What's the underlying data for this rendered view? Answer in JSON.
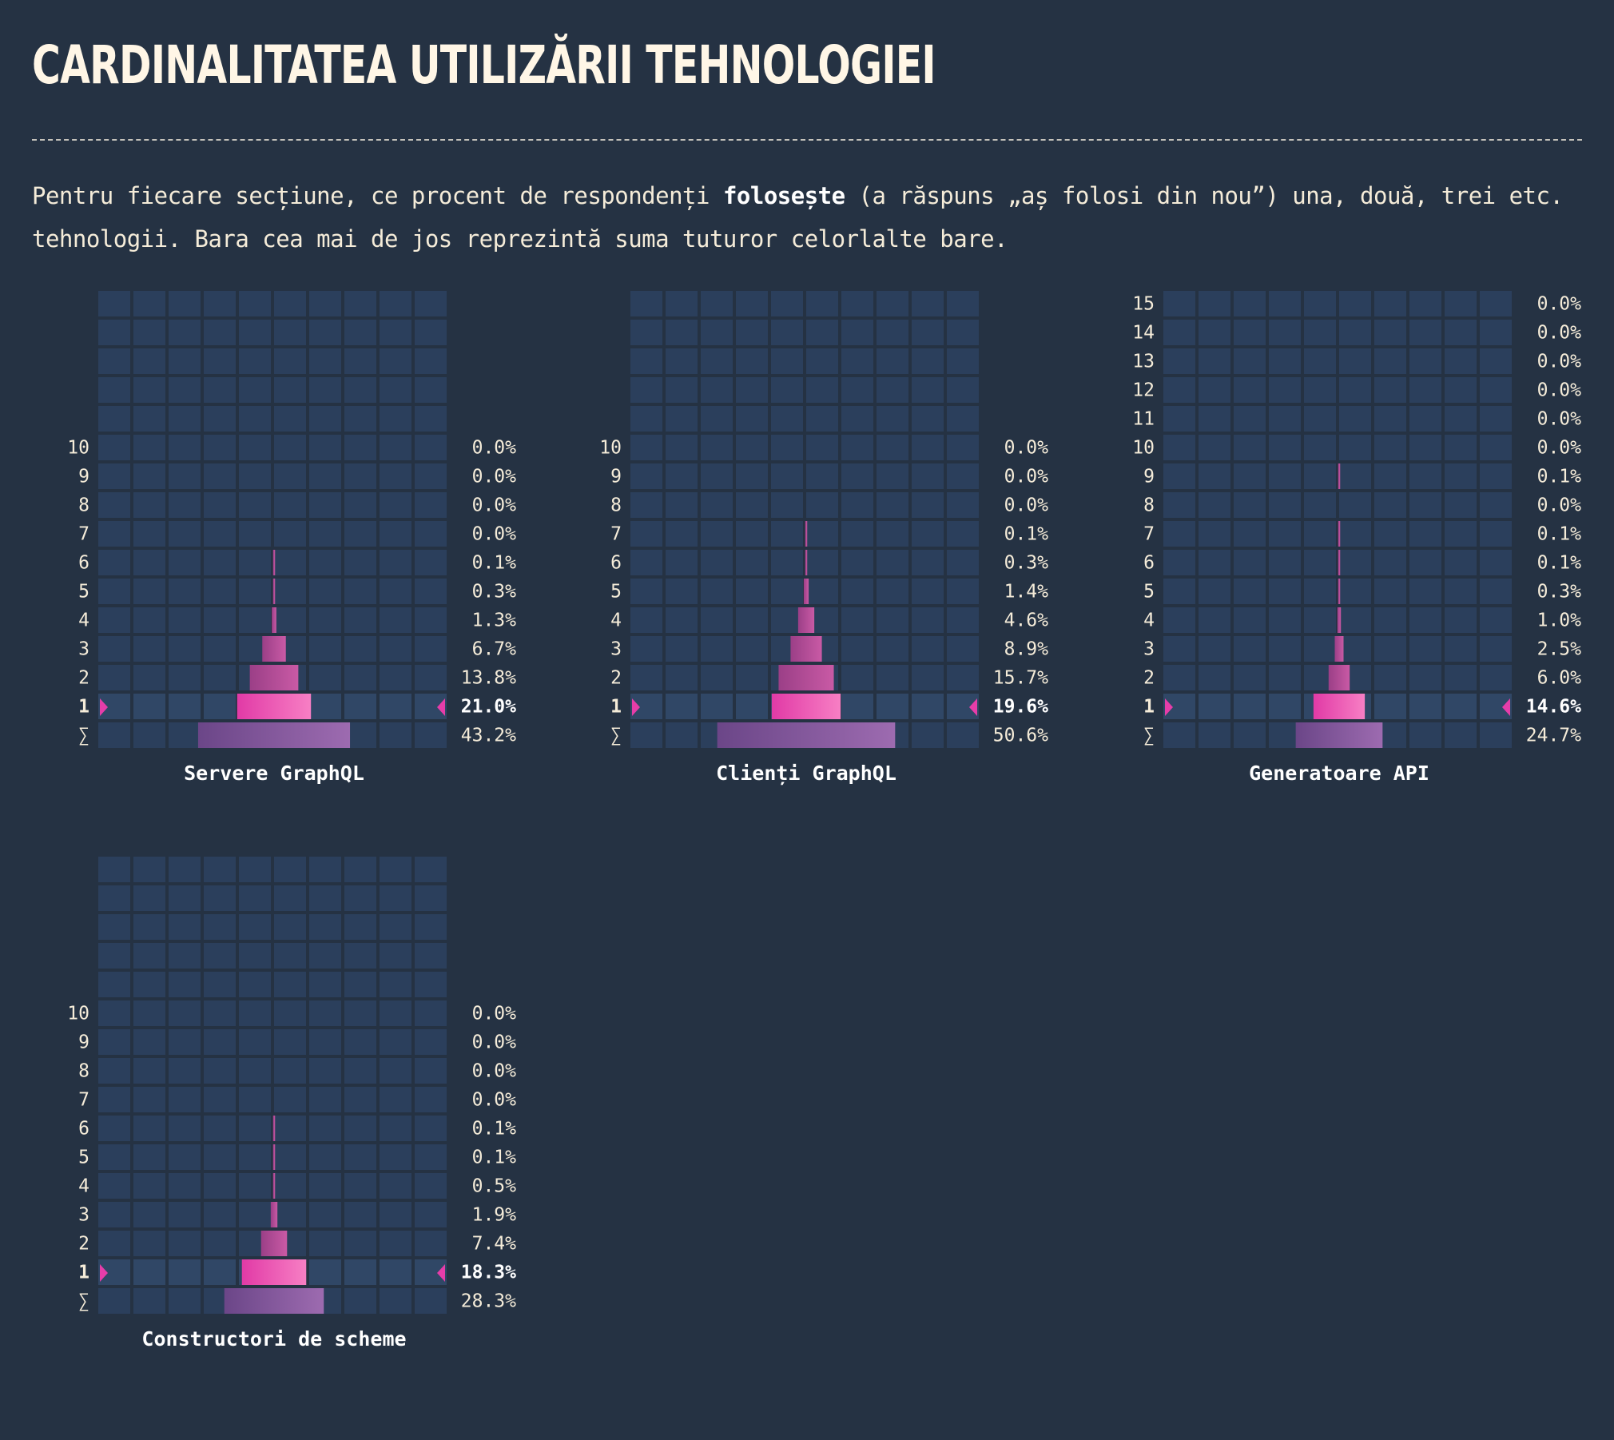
{
  "page": {
    "title": "CARDINALITATEA UTILIZĂRII TEHNOLOGIEI",
    "intro": {
      "before": "Pentru fiecare secțiune, ce procent de respondenți ",
      "emphasis": "folosește",
      "after": " (a răspuns „aș folosi din nou”) una, două, trei etc. tehnologii. Bara cea mai de jos reprezintă suma tuturor celorlalte bare."
    }
  },
  "colors": {
    "background": "#253243",
    "cell": "#2b3f5c",
    "cell_highlight": "#304766",
    "bar_main_start": "#e13aa6",
    "bar_main_end": "#f77fc4",
    "bar_start": "#9b3f87",
    "bar_end": "#c95aa5",
    "sum_start": "#6b4688",
    "sum_end": "#9d6bb0",
    "marker": "#e63da9",
    "text": "#f5ecd9"
  },
  "chart_data": [
    {
      "type": "bar",
      "title": "Servere GraphQL",
      "categories": [
        "10",
        "9",
        "8",
        "7",
        "6",
        "5",
        "4",
        "3",
        "2",
        "1",
        "∑"
      ],
      "values": [
        0.0,
        0.0,
        0.0,
        0.0,
        0.1,
        0.3,
        1.3,
        6.7,
        13.8,
        21.0,
        43.2
      ],
      "value_labels": [
        "0.0%",
        "0.0%",
        "0.0%",
        "0.0%",
        "0.1%",
        "0.3%",
        "1.3%",
        "6.7%",
        "13.8%",
        "21.0%",
        "43.2%"
      ],
      "highlight": "1",
      "sum_label": "∑",
      "empty_rows_above": 5,
      "xlim": [
        0,
        100
      ]
    },
    {
      "type": "bar",
      "title": "Clienți GraphQL",
      "categories": [
        "10",
        "9",
        "8",
        "7",
        "6",
        "5",
        "4",
        "3",
        "2",
        "1",
        "∑"
      ],
      "values": [
        0.0,
        0.0,
        0.0,
        0.1,
        0.3,
        1.4,
        4.6,
        8.9,
        15.7,
        19.6,
        50.6
      ],
      "value_labels": [
        "0.0%",
        "0.0%",
        "0.0%",
        "0.1%",
        "0.3%",
        "1.4%",
        "4.6%",
        "8.9%",
        "15.7%",
        "19.6%",
        "50.6%"
      ],
      "highlight": "1",
      "sum_label": "∑",
      "empty_rows_above": 5,
      "xlim": [
        0,
        100
      ]
    },
    {
      "type": "bar",
      "title": "Generatoare API",
      "categories": [
        "15",
        "14",
        "13",
        "12",
        "11",
        "10",
        "9",
        "8",
        "7",
        "6",
        "5",
        "4",
        "3",
        "2",
        "1",
        "∑"
      ],
      "values": [
        0.0,
        0.0,
        0.0,
        0.0,
        0.0,
        0.0,
        0.1,
        0.0,
        0.1,
        0.1,
        0.3,
        1.0,
        2.5,
        6.0,
        14.6,
        24.7
      ],
      "value_labels": [
        "0.0%",
        "0.0%",
        "0.0%",
        "0.0%",
        "0.0%",
        "0.0%",
        "0.1%",
        "0.0%",
        "0.1%",
        "0.1%",
        "0.3%",
        "1.0%",
        "2.5%",
        "6.0%",
        "14.6%",
        "24.7%"
      ],
      "highlight": "1",
      "sum_label": "∑",
      "empty_rows_above": 0,
      "xlim": [
        0,
        100
      ]
    },
    {
      "type": "bar",
      "title": "Constructori de scheme",
      "categories": [
        "10",
        "9",
        "8",
        "7",
        "6",
        "5",
        "4",
        "3",
        "2",
        "1",
        "∑"
      ],
      "values": [
        0.0,
        0.0,
        0.0,
        0.0,
        0.1,
        0.1,
        0.5,
        1.9,
        7.4,
        18.3,
        28.3
      ],
      "value_labels": [
        "0.0%",
        "0.0%",
        "0.0%",
        "0.0%",
        "0.1%",
        "0.1%",
        "0.5%",
        "1.9%",
        "7.4%",
        "18.3%",
        "28.3%"
      ],
      "highlight": "1",
      "sum_label": "∑",
      "empty_rows_above": 5,
      "xlim": [
        0,
        100
      ]
    }
  ]
}
